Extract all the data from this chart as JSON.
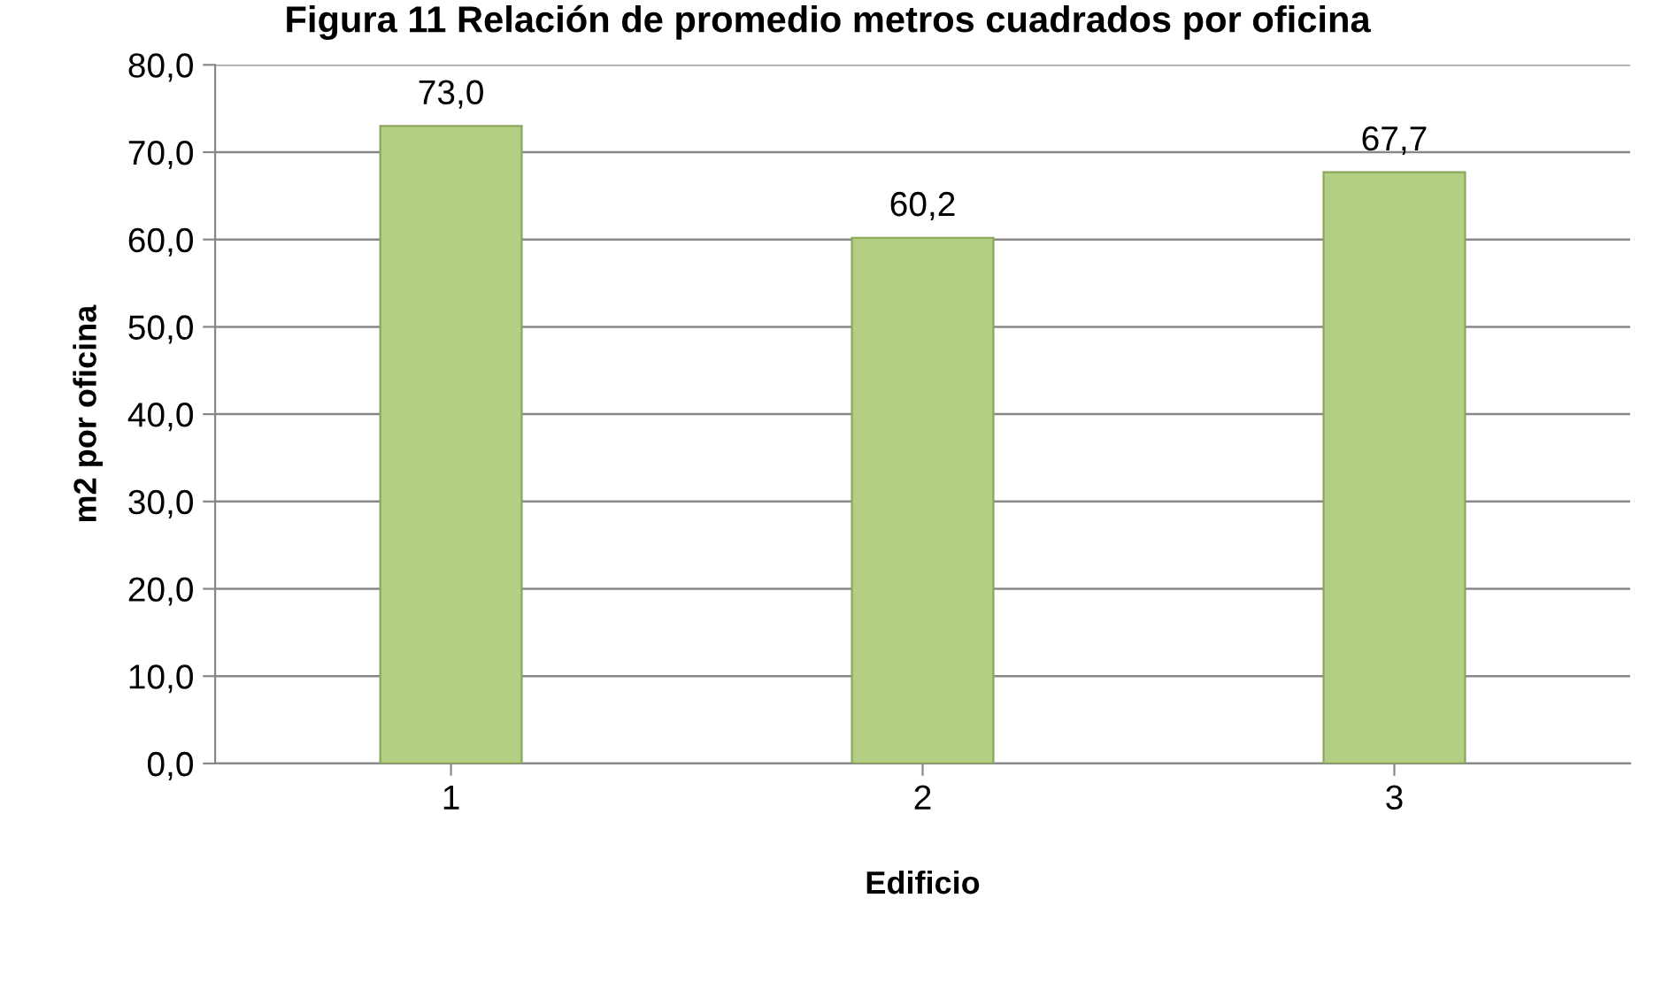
{
  "chart_data": {
    "type": "bar",
    "title": "Figura 11 Relación de promedio metros cuadrados por oficina",
    "xlabel": "Edificio",
    "ylabel": "m2 por oficina",
    "categories": [
      "1",
      "2",
      "3"
    ],
    "values": [
      73.0,
      60.2,
      67.7
    ],
    "value_labels": [
      "73,0",
      "60,2",
      "67,7"
    ],
    "color": "#b3cf84",
    "ylim": [
      0,
      80
    ],
    "yticks": [
      {
        "value": 0,
        "label": "0,0"
      },
      {
        "value": 10,
        "label": "10,0"
      },
      {
        "value": 20,
        "label": "20,0"
      },
      {
        "value": 30,
        "label": "30,0"
      },
      {
        "value": 40,
        "label": "40,0"
      },
      {
        "value": 50,
        "label": "50,0"
      },
      {
        "value": 60,
        "label": "60,0"
      },
      {
        "value": 70,
        "label": "70,0"
      },
      {
        "value": 80,
        "label": "80,0"
      }
    ],
    "grid": "y"
  }
}
